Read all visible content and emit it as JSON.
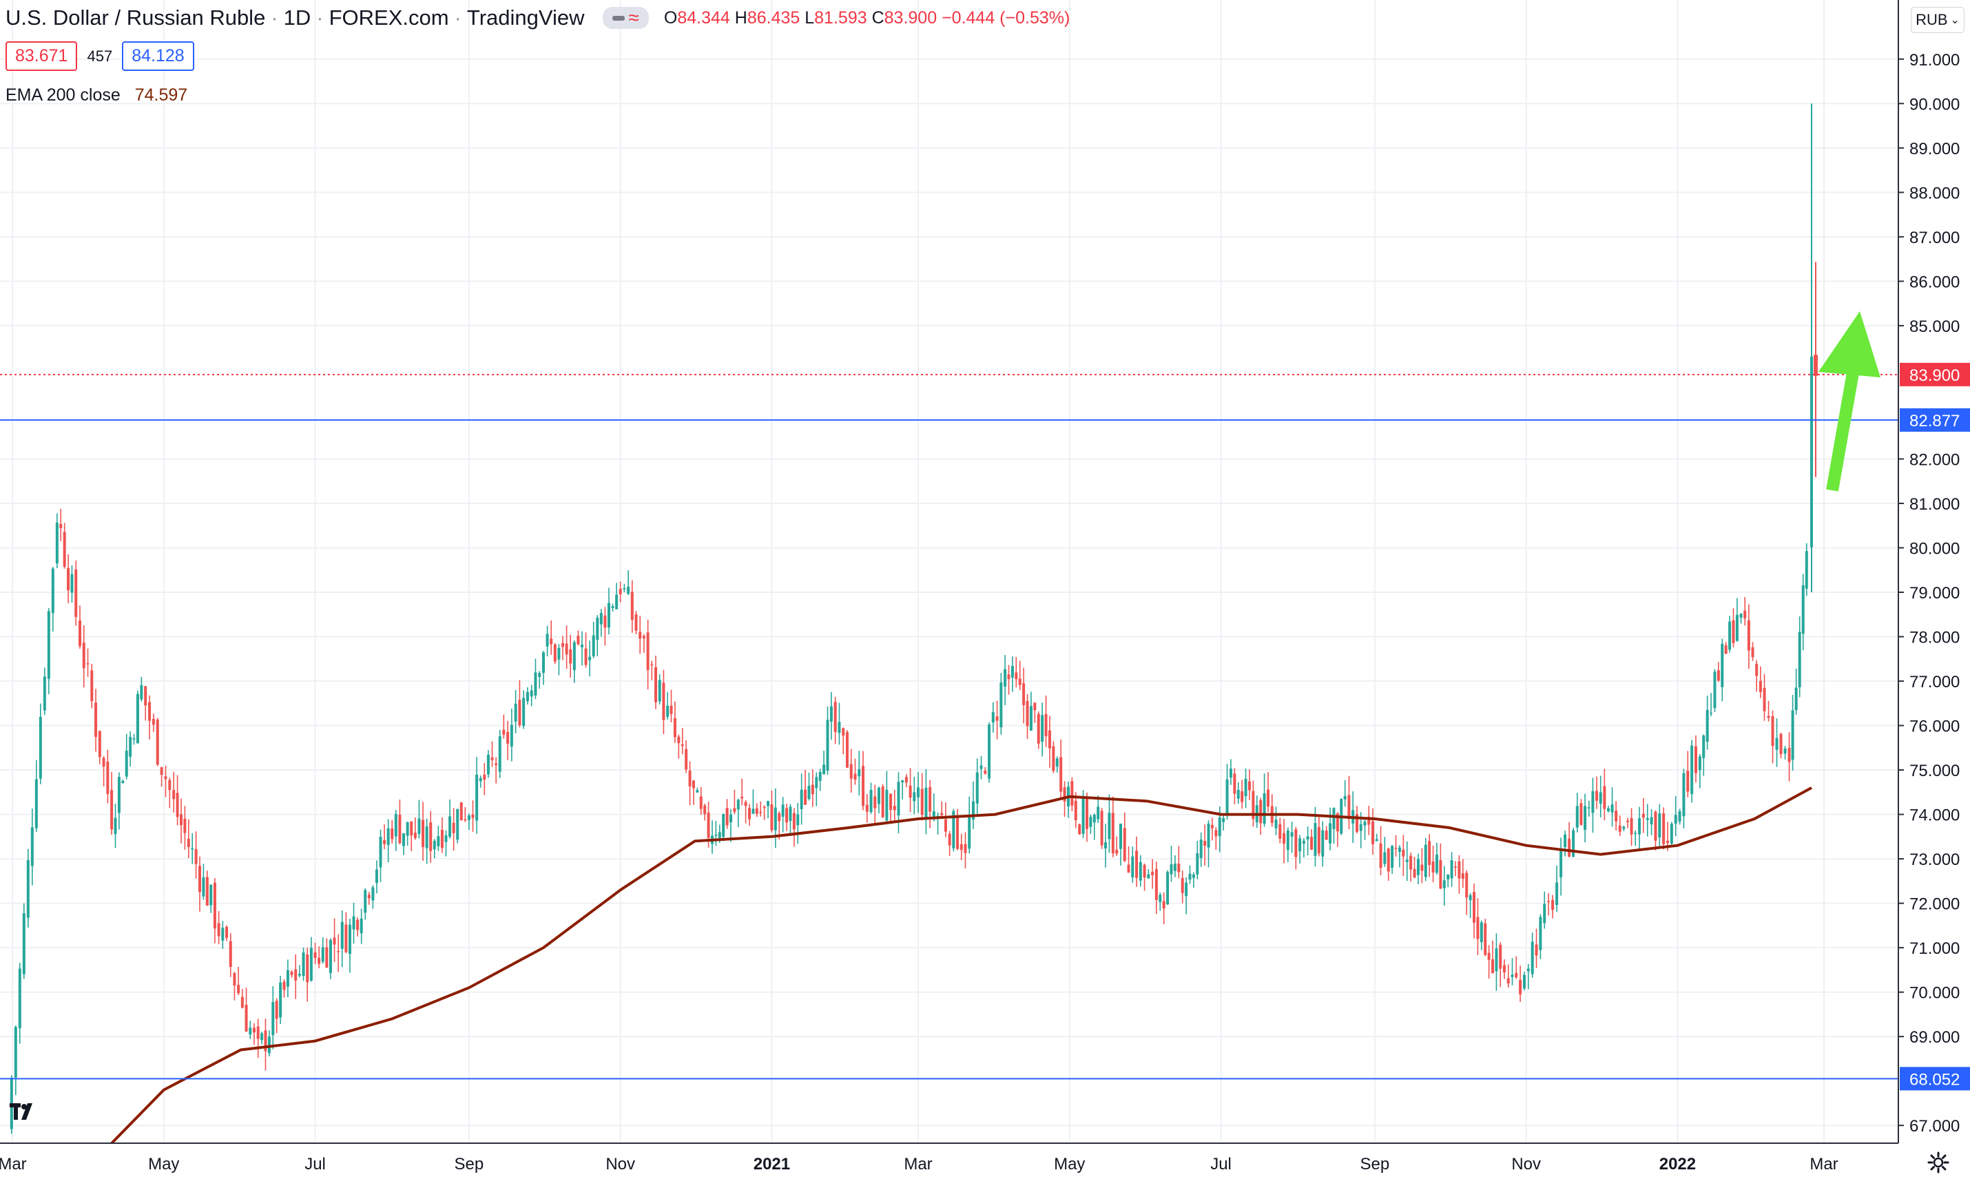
{
  "header": {
    "symbol_title": "U.S. Dollar / Russian Ruble",
    "interval": "1D",
    "source": "FOREX.com",
    "platform": "TradingView",
    "ohlc": {
      "o_label": "O",
      "o": "84.344",
      "h_label": "H",
      "h": "86.435",
      "l_label": "L",
      "l": "81.593",
      "c_label": "C",
      "c": "83.900",
      "change": "−0.444 (−0.53%)"
    },
    "sell_price": "83.671",
    "spread": "457",
    "buy_price": "84.128",
    "indicator_label": "EMA 200 close",
    "indicator_value": "74.597",
    "currency_button": "RUB"
  },
  "colors": {
    "up": "#26a69a",
    "down": "#ef5350",
    "ema": "#8b1e00",
    "hline": "#2962ff",
    "price_line": "#f23645",
    "arrow": "#6be83a",
    "grid": "#eef0f4",
    "axis_text": "#131722"
  },
  "chart_data": {
    "type": "candlestick",
    "title": "U.S. Dollar / Russian Ruble · 1D · FOREX.com",
    "ylim": [
      66.6,
      91.4
    ],
    "x_tick_labels": [
      "Mar",
      "May",
      "Jul",
      "Sep",
      "Nov",
      "2021",
      "Mar",
      "May",
      "Jul",
      "Sep",
      "Nov",
      "2022",
      "Mar"
    ],
    "y_tick_labels": [
      "91.000",
      "90.000",
      "89.000",
      "88.000",
      "87.000",
      "86.000",
      "85.000",
      "82.000",
      "81.000",
      "80.000",
      "79.000",
      "78.000",
      "77.000",
      "76.000",
      "75.000",
      "74.000",
      "73.000",
      "72.000",
      "71.000",
      "70.000",
      "69.000",
      "67.000"
    ],
    "y_ticks": [
      91,
      90,
      89,
      88,
      87,
      86,
      85,
      82,
      81,
      80,
      79,
      78,
      77,
      76,
      75,
      74,
      73,
      72,
      71,
      70,
      69,
      67
    ],
    "price_series": [
      {
        "date": "2020-02-28",
        "value": 66.9
      },
      {
        "date": "2020-03-09",
        "value": 74.0
      },
      {
        "date": "2020-03-19",
        "value": 80.8
      },
      {
        "date": "2020-03-25",
        "value": 79.0
      },
      {
        "date": "2020-04-10",
        "value": 74.0
      },
      {
        "date": "2020-04-22",
        "value": 76.8
      },
      {
        "date": "2020-05-05",
        "value": 74.2
      },
      {
        "date": "2020-05-20",
        "value": 72.0
      },
      {
        "date": "2020-06-08",
        "value": 68.6
      },
      {
        "date": "2020-06-20",
        "value": 70.2
      },
      {
        "date": "2020-07-01",
        "value": 70.8
      },
      {
        "date": "2020-07-15",
        "value": 71.4
      },
      {
        "date": "2020-08-01",
        "value": 73.8
      },
      {
        "date": "2020-08-15",
        "value": 73.4
      },
      {
        "date": "2020-09-01",
        "value": 74.2
      },
      {
        "date": "2020-09-15",
        "value": 75.5
      },
      {
        "date": "2020-10-01",
        "value": 77.8
      },
      {
        "date": "2020-10-15",
        "value": 77.4
      },
      {
        "date": "2020-11-01",
        "value": 79.2
      },
      {
        "date": "2020-11-20",
        "value": 76.2
      },
      {
        "date": "2020-12-05",
        "value": 73.6
      },
      {
        "date": "2020-12-20",
        "value": 74.2
      },
      {
        "date": "2021-01-10",
        "value": 73.8
      },
      {
        "date": "2021-01-25",
        "value": 76.0
      },
      {
        "date": "2021-02-10",
        "value": 74.2
      },
      {
        "date": "2021-03-01",
        "value": 74.4
      },
      {
        "date": "2021-03-20",
        "value": 73.4
      },
      {
        "date": "2021-04-05",
        "value": 77.2
      },
      {
        "date": "2021-04-20",
        "value": 75.8
      },
      {
        "date": "2021-05-05",
        "value": 74.0
      },
      {
        "date": "2021-05-20",
        "value": 73.5
      },
      {
        "date": "2021-06-05",
        "value": 72.2
      },
      {
        "date": "2021-06-20",
        "value": 72.8
      },
      {
        "date": "2021-07-05",
        "value": 74.6
      },
      {
        "date": "2021-07-20",
        "value": 74.0
      },
      {
        "date": "2021-08-05",
        "value": 73.2
      },
      {
        "date": "2021-08-20",
        "value": 74.0
      },
      {
        "date": "2021-09-05",
        "value": 73.0
      },
      {
        "date": "2021-09-20",
        "value": 73.0
      },
      {
        "date": "2021-10-05",
        "value": 72.4
      },
      {
        "date": "2021-10-20",
        "value": 70.6
      },
      {
        "date": "2021-10-28",
        "value": 70.2
      },
      {
        "date": "2021-11-10",
        "value": 71.8
      },
      {
        "date": "2021-11-20",
        "value": 73.8
      },
      {
        "date": "2021-12-01",
        "value": 74.6
      },
      {
        "date": "2021-12-15",
        "value": 73.6
      },
      {
        "date": "2021-12-28",
        "value": 73.8
      },
      {
        "date": "2022-01-10",
        "value": 75.6
      },
      {
        "date": "2022-01-25",
        "value": 78.6
      },
      {
        "date": "2022-02-05",
        "value": 76.4
      },
      {
        "date": "2022-02-15",
        "value": 75.0
      },
      {
        "date": "2022-02-22",
        "value": 80.0
      },
      {
        "date": "2022-02-24",
        "value": 83.9
      }
    ],
    "ema200_series": [
      {
        "date": "2020-04-10",
        "value": 66.6
      },
      {
        "date": "2020-05-01",
        "value": 67.8
      },
      {
        "date": "2020-06-01",
        "value": 68.7
      },
      {
        "date": "2020-07-01",
        "value": 68.9
      },
      {
        "date": "2020-08-01",
        "value": 69.4
      },
      {
        "date": "2020-09-01",
        "value": 70.1
      },
      {
        "date": "2020-10-01",
        "value": 71.0
      },
      {
        "date": "2020-11-01",
        "value": 72.3
      },
      {
        "date": "2020-12-01",
        "value": 73.4
      },
      {
        "date": "2021-01-01",
        "value": 73.5
      },
      {
        "date": "2021-02-01",
        "value": 73.7
      },
      {
        "date": "2021-03-01",
        "value": 73.9
      },
      {
        "date": "2021-04-01",
        "value": 74.0
      },
      {
        "date": "2021-05-01",
        "value": 74.4
      },
      {
        "date": "2021-06-01",
        "value": 74.3
      },
      {
        "date": "2021-07-01",
        "value": 74.0
      },
      {
        "date": "2021-08-01",
        "value": 74.0
      },
      {
        "date": "2021-09-01",
        "value": 73.9
      },
      {
        "date": "2021-10-01",
        "value": 73.7
      },
      {
        "date": "2021-11-01",
        "value": 73.3
      },
      {
        "date": "2021-12-01",
        "value": 73.1
      },
      {
        "date": "2022-01-01",
        "value": 73.3
      },
      {
        "date": "2022-02-01",
        "value": 73.9
      },
      {
        "date": "2022-02-24",
        "value": 74.6
      }
    ],
    "horizontal_lines": [
      82.877,
      68.052
    ],
    "last_price": 83.9,
    "axis_badges": [
      "83.900",
      "82.877",
      "68.052"
    ],
    "spike_high": 90.0,
    "grid": true,
    "annotation": "green upward arrow at right, near the latest candles"
  }
}
